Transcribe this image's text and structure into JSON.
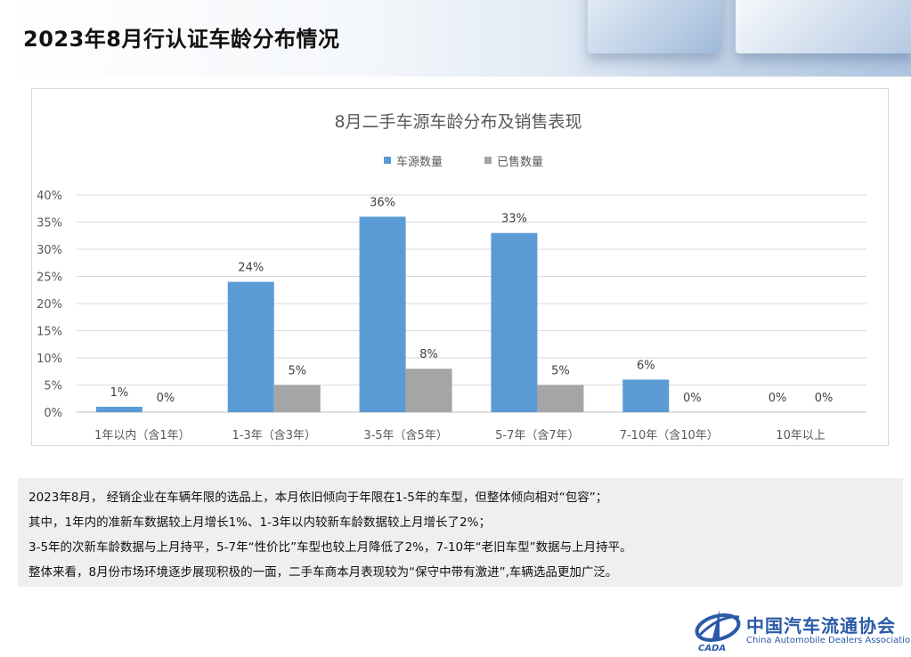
{
  "page": {
    "title": "2023年8月行认证车龄分布情况"
  },
  "chart_data": {
    "type": "bar",
    "title": "8月二手车源车龄分布及销售表现",
    "categories": [
      "1年以内（含1年）",
      "1-3年（含3年）",
      "3-5年（含5年）",
      "5-7年（含7年）",
      "7-10年（含10年）",
      "10年以上"
    ],
    "series": [
      {
        "name": "车源数量",
        "values": [
          1,
          24,
          36,
          33,
          6,
          0
        ],
        "color": "#5b9bd5",
        "labels": [
          "1%",
          "24%",
          "36%",
          "33%",
          "6%",
          "0%"
        ]
      },
      {
        "name": "已售数量",
        "values": [
          0,
          5,
          8,
          5,
          0,
          0
        ],
        "color": "#a5a5a5",
        "labels": [
          "0%",
          "5%",
          "8%",
          "5%",
          "0%",
          "0%"
        ]
      }
    ],
    "ylim": [
      0,
      40
    ],
    "yticks": [
      0,
      5,
      10,
      15,
      20,
      25,
      30,
      35,
      40
    ],
    "ytick_labels": [
      "0%",
      "5%",
      "10%",
      "15%",
      "20%",
      "25%",
      "30%",
      "35%",
      "40%"
    ],
    "xlabel": "",
    "ylabel": "",
    "grid": true,
    "legend_position": "top-center"
  },
  "notes": {
    "lines": [
      "2023年8月， 经销企业在车辆年限的选品上，本月依旧倾向于年限在1-5年的车型，但整体倾向相对“包容”；",
      "其中，1年内的准新车数据较上月增长1%、1-3年以内较新车龄数据较上月增长了2%；",
      "3-5年的次新车龄数据与上月持平，5-7年“性价比”车型也较上月降低了2%，7-10年“老旧车型”数据与上月持平。",
      "整体来看，8月份市场环境逐步展现积极的一面，二手车商本月表现较为“保守中带有激进”,车辆选品更加广泛。"
    ]
  },
  "logo": {
    "name": "中国汽车流通协会",
    "english": "China Automobile Dealers Association",
    "abbr": "CADA",
    "color": "#2a5aa8"
  }
}
